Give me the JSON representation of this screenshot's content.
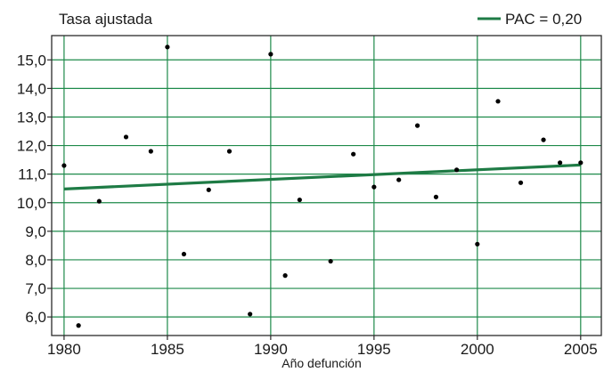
{
  "chart_data": {
    "type": "scatter",
    "title": "",
    "ylabel": "Tasa ajustada",
    "xlabel": "Año defunción",
    "xlim": [
      1979.4,
      2006
    ],
    "ylim": [
      5.35,
      15.85
    ],
    "x_ticks": [
      1980,
      1985,
      1990,
      1995,
      2000,
      2005
    ],
    "x_tick_labels": [
      "1980",
      "1985",
      "1990",
      "1995",
      "2000",
      "2005"
    ],
    "y_ticks": [
      6.0,
      7.0,
      8.0,
      9.0,
      10.0,
      11.0,
      12.0,
      13.0,
      14.0,
      15.0
    ],
    "y_tick_labels": [
      "6,0",
      "7,0",
      "8,0",
      "9,0",
      "10,0",
      "11,0",
      "12,0",
      "13,0",
      "14,0",
      "15,0"
    ],
    "grid": true,
    "legend_position": "top-right",
    "series": [
      {
        "type": "scatter",
        "x": [
          1980,
          1980.7,
          1981.7,
          1983,
          1984.2,
          1985,
          1985.8,
          1987,
          1988,
          1989,
          1990,
          1990.7,
          1991.4,
          1992.9,
          1994,
          1995,
          1996.2,
          1997.1,
          1998,
          1999,
          2000,
          2001,
          2002.1,
          2003.2,
          2004,
          2005
        ],
        "y": [
          11.3,
          5.7,
          10.05,
          12.3,
          11.8,
          15.45,
          8.2,
          10.45,
          11.8,
          6.1,
          15.2,
          7.45,
          10.1,
          7.95,
          11.7,
          10.55,
          10.8,
          12.7,
          10.2,
          11.15,
          8.55,
          13.55,
          10.7,
          12.2,
          11.4,
          11.4
        ],
        "color": "#000000"
      },
      {
        "type": "line",
        "name": "PAC = 0,20",
        "x": [
          1980,
          2005
        ],
        "y": [
          10.48,
          11.32
        ],
        "color": "#1e7b45"
      }
    ]
  },
  "colors": {
    "grid": "#1e8a4a",
    "frame": "#2b2b2b",
    "trend": "#1e7b45",
    "points": "#000000"
  }
}
